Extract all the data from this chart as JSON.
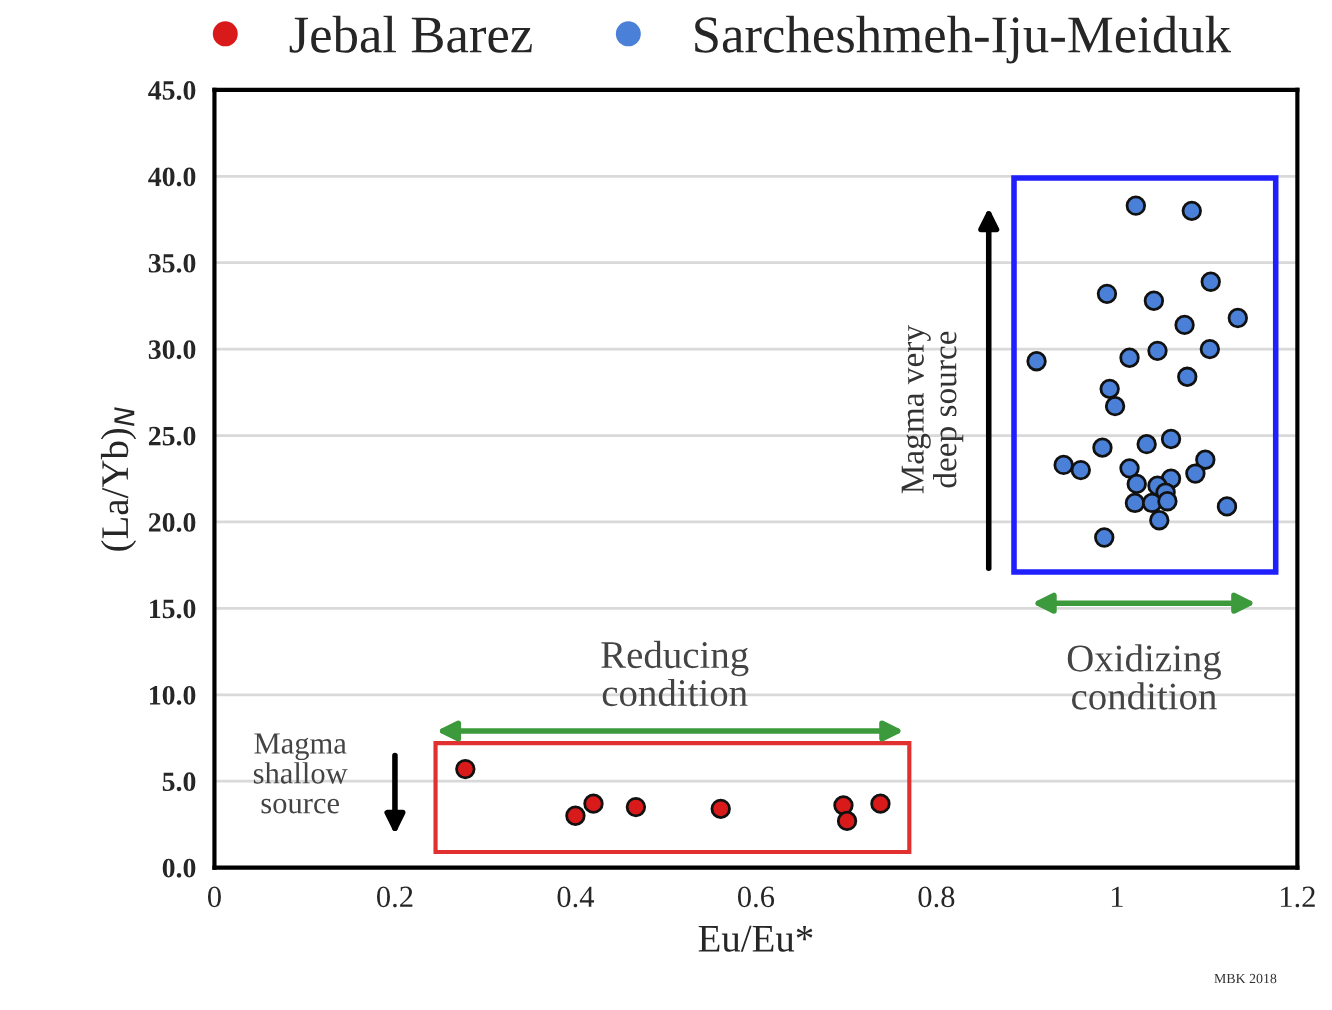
{
  "chart_data": {
    "type": "scatter",
    "xlabel": "Eu/Eu*",
    "ylabel": "(La/Yb)$_{N}$",
    "xlim": [
      0,
      1.2
    ],
    "xticks": [
      0,
      0.2,
      0.4,
      0.6,
      0.8,
      1,
      1.2
    ],
    "ylim": [
      0,
      45
    ],
    "yticks": [
      {
        "value": 0,
        "label": "0.0"
      },
      {
        "value": 5,
        "label": "5.0"
      },
      {
        "value": 10,
        "label": "10.0"
      },
      {
        "value": 15,
        "label": "15.0"
      },
      {
        "value": 20,
        "label": "20.0"
      },
      {
        "value": 25,
        "label": "25.0"
      },
      {
        "value": 30,
        "label": "30.0"
      },
      {
        "value": 35,
        "label": "35.0"
      },
      {
        "value": 40,
        "label": "40.0"
      },
      {
        "value": 45,
        "label": "45.0"
      }
    ],
    "grid": "y",
    "legend": "top",
    "marker": "circle",
    "series": [
      {
        "name": "Jebal Barez",
        "color": "#d91a1a",
        "x": [
          0.278,
          0.4,
          0.42,
          0.467,
          0.561,
          0.697,
          0.701,
          0.738
        ],
        "values": [
          5.7,
          3.0,
          3.7,
          3.5,
          3.4,
          3.6,
          2.7,
          3.7
        ]
      },
      {
        "name": "Sarcheshmeh-Iju-Meiduk",
        "color": "#4a80d8",
        "x": [
          1.021,
          1.083,
          1.104,
          0.989,
          1.041,
          1.134,
          1.075,
          1.103,
          1.045,
          1.014,
          0.911,
          1.078,
          0.992,
          0.998,
          1.06,
          1.033,
          0.984,
          1.098,
          0.941,
          0.96,
          1.014,
          1.087,
          1.06,
          1.022,
          1.045,
          1.054,
          1.122,
          1.02,
          1.039,
          1.056,
          1.047,
          0.986
        ],
        "values": [
          38.3,
          38.0,
          33.9,
          33.2,
          32.8,
          31.8,
          31.4,
          30.0,
          29.9,
          29.5,
          29.3,
          28.4,
          27.7,
          26.7,
          24.8,
          24.5,
          24.3,
          23.6,
          23.3,
          23.0,
          23.1,
          22.8,
          22.5,
          22.2,
          22.1,
          21.7,
          20.9,
          21.1,
          21.1,
          21.2,
          20.1,
          19.1
        ]
      }
    ],
    "annotations": [
      "Reducing\ncondition",
      "Oxidizing\ncondition",
      "Magma very\ndeep source",
      "Magma\nshallow\nsource",
      "MBK 2018"
    ]
  }
}
